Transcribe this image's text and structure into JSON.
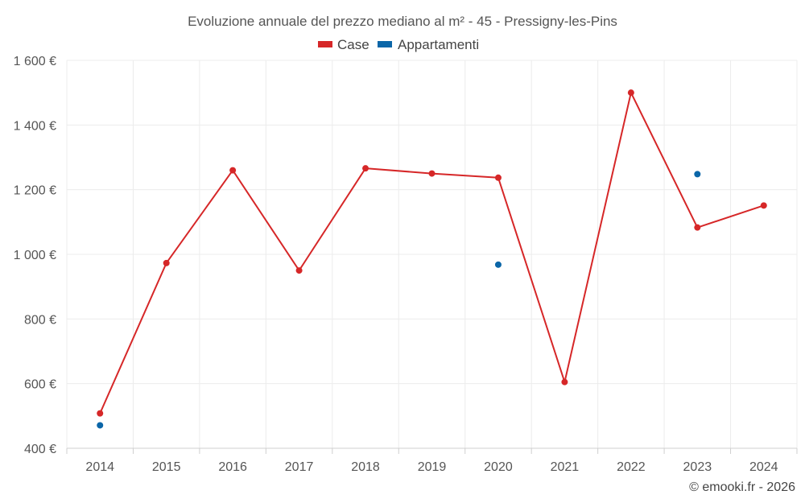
{
  "chart_data": {
    "type": "line",
    "title": "Evoluzione annuale del prezzo mediano al m² - 45 - Pressigny-les-Pins",
    "categories": [
      "2014",
      "2015",
      "2016",
      "2017",
      "2018",
      "2019",
      "2020",
      "2021",
      "2022",
      "2023",
      "2024"
    ],
    "series": [
      {
        "name": "Case",
        "color": "#d62728",
        "style": "line",
        "values": [
          508,
          973,
          1260,
          950,
          1266,
          1250,
          1237,
          605,
          1500,
          1083,
          1151
        ]
      },
      {
        "name": "Appartamenti",
        "color": "#0b66a8",
        "style": "points",
        "values": [
          471,
          null,
          null,
          null,
          null,
          null,
          968,
          null,
          null,
          1248,
          null
        ]
      }
    ],
    "ylim": [
      400,
      1600
    ],
    "yticks": [
      400,
      600,
      800,
      1000,
      1200,
      1400,
      1600
    ],
    "ytick_labels": [
      "400 €",
      "600 €",
      "800 €",
      "1 000 €",
      "1 200 €",
      "1 400 €",
      "1 600 €"
    ],
    "xlabel": "",
    "ylabel": "",
    "grid": true,
    "legend_position": "top-center"
  },
  "credit": "© emooki.fr - 2026"
}
